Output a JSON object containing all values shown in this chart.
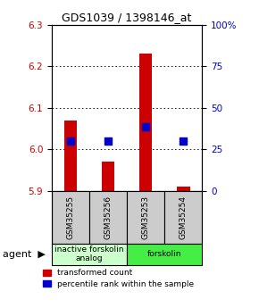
{
  "title": "GDS1039 / 1398146_at",
  "samples": [
    "GSM35255",
    "GSM35256",
    "GSM35253",
    "GSM35254"
  ],
  "red_tops": [
    6.07,
    5.97,
    6.23,
    5.91
  ],
  "blue_values": [
    6.02,
    6.02,
    6.055,
    6.02
  ],
  "red_base": 5.9,
  "ylim": [
    5.9,
    6.3
  ],
  "y2lim": [
    0,
    100
  ],
  "yticks": [
    5.9,
    6.0,
    6.1,
    6.2,
    6.3
  ],
  "y2ticks": [
    0,
    25,
    50,
    75,
    100
  ],
  "y2ticklabels": [
    "0",
    "25",
    "50",
    "75",
    "100%"
  ],
  "groups": [
    {
      "label": "inactive forskolin\nanalog",
      "color": "#ccffcc",
      "span": [
        0,
        2
      ]
    },
    {
      "label": "forskolin",
      "color": "#44ee44",
      "span": [
        2,
        4
      ]
    }
  ],
  "legend_red": "transformed count",
  "legend_blue": "percentile rank within the sample",
  "bar_color": "#cc0000",
  "dot_color": "#0000cc",
  "bar_width": 0.35,
  "dot_size": 35,
  "sample_box_color": "#cccccc",
  "left_tick_color": "#cc0000",
  "right_tick_color": "#0000cc",
  "fig_width": 2.9,
  "fig_height": 3.45,
  "dpi": 100
}
